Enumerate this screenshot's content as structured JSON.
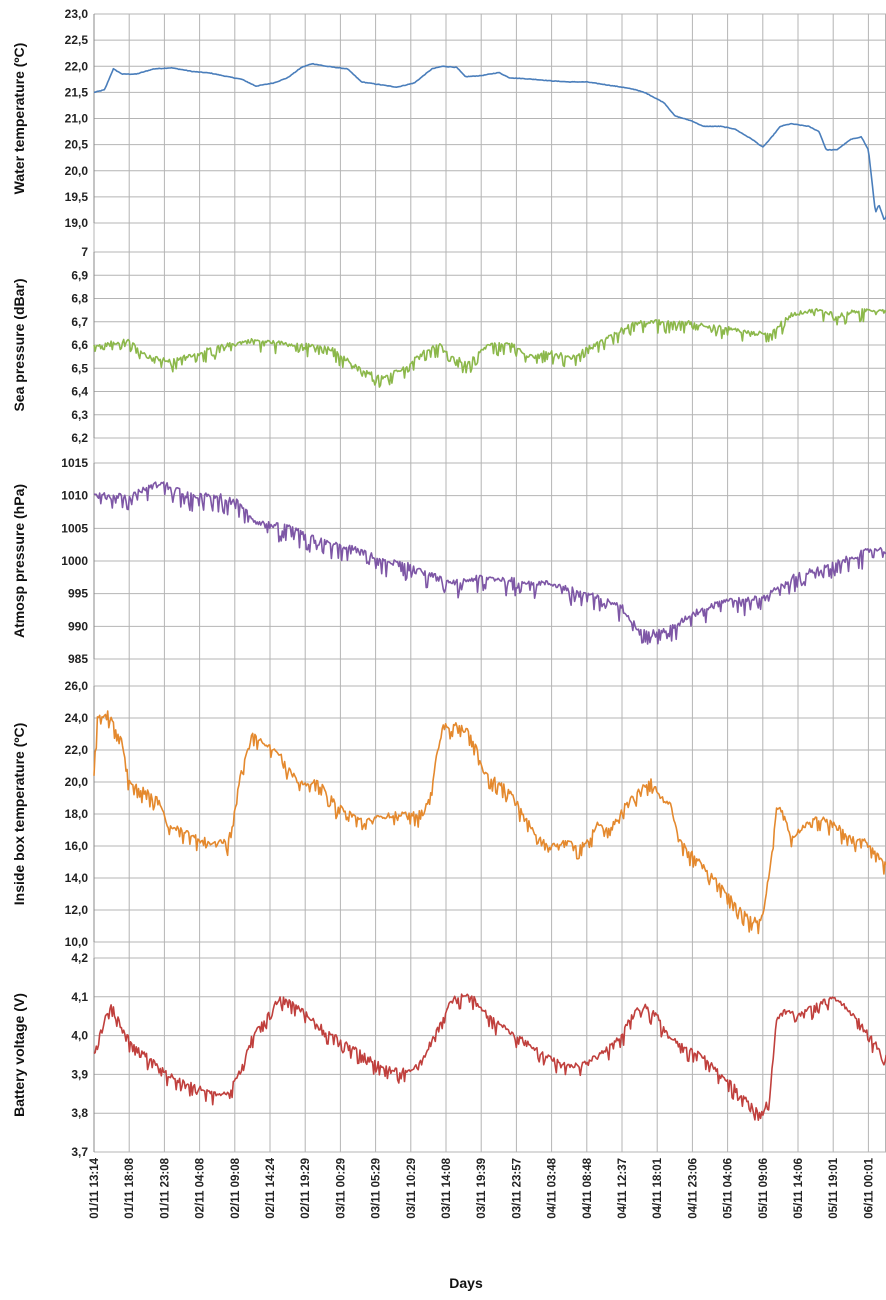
{
  "chart_data": {
    "type": "line",
    "xlabel": "Days",
    "x_ticks": [
      "01/11 13:14",
      "01/11 18:08",
      "01/11 23:08",
      "02/11 04:08",
      "02/11 09:08",
      "02/11 14:24",
      "02/11 19:29",
      "03/11 00:29",
      "03/11 05:29",
      "03/11 10:29",
      "03/11 14:08",
      "03/11 19:39",
      "03/11 23:57",
      "04/11 03:48",
      "04/11 08:48",
      "04/11 12:37",
      "04/11 18:01",
      "04/11 23:06",
      "05/11 04:06",
      "05/11 09:06",
      "05/11 14:06",
      "05/11 19:01",
      "06/11 00:01"
    ],
    "grid": true,
    "panels": [
      {
        "ylabel": "Water temperature (ºC)",
        "color": "#4a7ebb",
        "ylim": [
          19.0,
          23.0
        ],
        "yticks": [
          "19,0",
          "19,5",
          "20,0",
          "20,5",
          "21,0",
          "21,5",
          "22,0",
          "22,5",
          "23,0"
        ],
        "noise": 0.01,
        "series": [
          [
            0,
            21.5
          ],
          [
            0.3,
            21.55
          ],
          [
            0.55,
            21.95
          ],
          [
            0.8,
            21.85
          ],
          [
            1.2,
            21.85
          ],
          [
            1.7,
            21.95
          ],
          [
            2.2,
            21.97
          ],
          [
            2.8,
            21.9
          ],
          [
            3.3,
            21.87
          ],
          [
            3.8,
            21.8
          ],
          [
            4.2,
            21.75
          ],
          [
            4.6,
            21.62
          ],
          [
            5.1,
            21.68
          ],
          [
            5.5,
            21.78
          ],
          [
            5.9,
            21.98
          ],
          [
            6.2,
            22.05
          ],
          [
            6.6,
            22.0
          ],
          [
            7.2,
            21.95
          ],
          [
            7.6,
            21.7
          ],
          [
            8.1,
            21.65
          ],
          [
            8.6,
            21.6
          ],
          [
            9.1,
            21.68
          ],
          [
            9.6,
            21.95
          ],
          [
            9.9,
            22.0
          ],
          [
            10.3,
            21.98
          ],
          [
            10.55,
            21.8
          ],
          [
            11.0,
            21.82
          ],
          [
            11.5,
            21.88
          ],
          [
            11.8,
            21.78
          ],
          [
            12.5,
            21.75
          ],
          [
            13.0,
            21.72
          ],
          [
            13.5,
            21.7
          ],
          [
            14.0,
            21.7
          ],
          [
            14.5,
            21.65
          ],
          [
            15.0,
            21.6
          ],
          [
            15.4,
            21.55
          ],
          [
            15.7,
            21.48
          ],
          [
            16.2,
            21.3
          ],
          [
            16.5,
            21.05
          ],
          [
            17.0,
            20.95
          ],
          [
            17.3,
            20.85
          ],
          [
            17.8,
            20.85
          ],
          [
            18.2,
            20.8
          ],
          [
            18.7,
            20.6
          ],
          [
            19.0,
            20.45
          ],
          [
            19.2,
            20.6
          ],
          [
            19.5,
            20.85
          ],
          [
            19.8,
            20.9
          ],
          [
            20.3,
            20.85
          ],
          [
            20.6,
            20.75
          ],
          [
            20.8,
            20.4
          ],
          [
            21.1,
            20.4
          ],
          [
            21.5,
            20.6
          ],
          [
            21.8,
            20.65
          ],
          [
            22.0,
            20.4
          ],
          [
            22.2,
            19.2
          ],
          [
            22.3,
            19.35
          ],
          [
            22.45,
            19.05
          ],
          [
            22.6,
            19.25
          ],
          [
            22.7,
            19.45
          ]
        ]
      },
      {
        "ylabel": "Sea pressure (dBar)",
        "color": "#8cb84b",
        "ylim": [
          6.2,
          7.0
        ],
        "yticks": [
          "6,2",
          "6,3",
          "6,4",
          "6,5",
          "6,6",
          "6,7",
          "6,8",
          "6,9",
          "7"
        ],
        "noise": 0.05,
        "series": [
          [
            0,
            6.6
          ],
          [
            1,
            6.62
          ],
          [
            1.5,
            6.55
          ],
          [
            2.2,
            6.53
          ],
          [
            3,
            6.57
          ],
          [
            3.8,
            6.6
          ],
          [
            4.5,
            6.62
          ],
          [
            5.2,
            6.61
          ],
          [
            6,
            6.6
          ],
          [
            6.8,
            6.58
          ],
          [
            7.5,
            6.5
          ],
          [
            8.2,
            6.46
          ],
          [
            8.8,
            6.5
          ],
          [
            9.3,
            6.57
          ],
          [
            9.8,
            6.6
          ],
          [
            10.2,
            6.55
          ],
          [
            10.6,
            6.52
          ],
          [
            11.2,
            6.6
          ],
          [
            11.8,
            6.61
          ],
          [
            12.3,
            6.55
          ],
          [
            12.9,
            6.57
          ],
          [
            13.6,
            6.55
          ],
          [
            14.2,
            6.6
          ],
          [
            14.8,
            6.65
          ],
          [
            15.4,
            6.7
          ],
          [
            16,
            6.7
          ],
          [
            16.8,
            6.7
          ],
          [
            17.5,
            6.68
          ],
          [
            18.1,
            6.67
          ],
          [
            18.7,
            6.65
          ],
          [
            19.2,
            6.65
          ],
          [
            19.8,
            6.73
          ],
          [
            20.5,
            6.75
          ],
          [
            21.2,
            6.73
          ],
          [
            21.8,
            6.75
          ],
          [
            22.4,
            6.75
          ],
          [
            22.7,
            6.75
          ]
        ]
      },
      {
        "ylabel": "Atmosp pressure (hPa)",
        "color": "#7e57a6",
        "ylim": [
          985,
          1015
        ],
        "yticks": [
          "985",
          "990",
          "995",
          "1000",
          "1005",
          "1010",
          "1015"
        ],
        "noise": 2.5,
        "series": [
          [
            0,
            1010
          ],
          [
            1,
            1010
          ],
          [
            1.9,
            1012
          ],
          [
            2.8,
            1010
          ],
          [
            3.5,
            1010
          ],
          [
            4.1,
            1009
          ],
          [
            4.6,
            1006
          ],
          [
            5.6,
            1005
          ],
          [
            6.5,
            1003
          ],
          [
            7.3,
            1002
          ],
          [
            8.3,
            1000
          ],
          [
            9.2,
            999
          ],
          [
            10.1,
            996.5
          ],
          [
            11,
            997.5
          ],
          [
            12,
            997
          ],
          [
            13,
            996.5
          ],
          [
            14,
            995
          ],
          [
            15,
            993
          ],
          [
            15.4,
            990
          ],
          [
            16,
            989
          ],
          [
            16.5,
            990
          ],
          [
            17,
            992
          ],
          [
            17.8,
            994
          ],
          [
            18.6,
            994
          ],
          [
            19.2,
            995
          ],
          [
            20,
            998
          ],
          [
            20.8,
            999
          ],
          [
            21.7,
            1001
          ],
          [
            22.2,
            1002
          ],
          [
            22.7,
            1001
          ]
        ]
      },
      {
        "ylabel": "Inside box temperature (ºC)",
        "color": "#e4892e",
        "ylim": [
          10.0,
          26.0
        ],
        "yticks": [
          "10,0",
          "12,0",
          "14,0",
          "16,0",
          "18,0",
          "20,0",
          "22,0",
          "24,0",
          "26,0"
        ],
        "noise": 0.9,
        "series": [
          [
            0,
            21.0
          ],
          [
            0.1,
            24.0
          ],
          [
            0.4,
            24.3
          ],
          [
            0.8,
            22.5
          ],
          [
            1.0,
            20.0
          ],
          [
            1.4,
            19.5
          ],
          [
            1.8,
            19.0
          ],
          [
            2.1,
            17.3
          ],
          [
            2.5,
            17.0
          ],
          [
            3.0,
            16.5
          ],
          [
            3.4,
            16.2
          ],
          [
            3.8,
            16.3
          ],
          [
            3.95,
            17.5
          ],
          [
            4.2,
            21.0
          ],
          [
            4.5,
            23.0
          ],
          [
            4.8,
            22.5
          ],
          [
            5.2,
            22.0
          ],
          [
            5.5,
            21.0
          ],
          [
            5.8,
            20.0
          ],
          [
            6.3,
            20.0
          ],
          [
            6.6,
            19.5
          ],
          [
            6.9,
            18.5
          ],
          [
            7.3,
            18.0
          ],
          [
            7.7,
            17.5
          ],
          [
            8.1,
            17.8
          ],
          [
            8.6,
            18.0
          ],
          [
            9.1,
            18.0
          ],
          [
            9.4,
            18.2
          ],
          [
            9.6,
            20.0
          ],
          [
            9.9,
            23.5
          ],
          [
            10.3,
            23.6
          ],
          [
            10.6,
            23.2
          ],
          [
            10.8,
            22.5
          ],
          [
            11.1,
            20.5
          ],
          [
            11.5,
            20.0
          ],
          [
            11.8,
            19.5
          ],
          [
            12.2,
            18.0
          ],
          [
            12.6,
            16.5
          ],
          [
            13.0,
            16.0
          ],
          [
            13.4,
            16.3
          ],
          [
            13.8,
            16.0
          ],
          [
            14.1,
            16.5
          ],
          [
            14.3,
            17.5
          ],
          [
            14.6,
            17.0
          ],
          [
            14.9,
            17.8
          ],
          [
            15.2,
            19.0
          ],
          [
            15.5,
            19.5
          ],
          [
            15.8,
            20.2
          ],
          [
            16.1,
            19.0
          ],
          [
            16.4,
            18.5
          ],
          [
            16.6,
            16.5
          ],
          [
            17.0,
            15.5
          ],
          [
            17.4,
            14.5
          ],
          [
            17.8,
            13.5
          ],
          [
            18.2,
            12.5
          ],
          [
            18.6,
            11.5
          ],
          [
            18.9,
            11.3
          ],
          [
            19.0,
            11.8
          ],
          [
            19.2,
            14.5
          ],
          [
            19.4,
            18.5
          ],
          [
            19.6,
            18.0
          ],
          [
            19.8,
            16.5
          ],
          [
            20.3,
            17.5
          ],
          [
            20.7,
            17.8
          ],
          [
            21.1,
            17.3
          ],
          [
            21.5,
            16.5
          ],
          [
            21.9,
            16.3
          ],
          [
            22.2,
            15.5
          ],
          [
            22.5,
            15.0
          ],
          [
            22.7,
            15.2
          ]
        ]
      },
      {
        "ylabel": "Battery voltage (V)",
        "color": "#c0403d",
        "ylim": [
          3.7,
          4.2
        ],
        "yticks": [
          "3,7",
          "3,8",
          "3,9",
          "4,0",
          "4,1",
          "4,2"
        ],
        "noise": 0.035,
        "series": [
          [
            0,
            3.95
          ],
          [
            0.2,
            4.02
          ],
          [
            0.5,
            4.08
          ],
          [
            0.8,
            4.02
          ],
          [
            1.1,
            3.98
          ],
          [
            1.6,
            3.94
          ],
          [
            2.1,
            3.9
          ],
          [
            2.6,
            3.88
          ],
          [
            3.1,
            3.86
          ],
          [
            3.5,
            3.85
          ],
          [
            3.8,
            3.85
          ],
          [
            4.1,
            3.9
          ],
          [
            4.5,
            4.0
          ],
          [
            4.9,
            4.05
          ],
          [
            5.3,
            4.1
          ],
          [
            5.7,
            4.08
          ],
          [
            6.1,
            4.05
          ],
          [
            6.5,
            4.02
          ],
          [
            7.0,
            3.99
          ],
          [
            7.5,
            3.96
          ],
          [
            8.0,
            3.93
          ],
          [
            8.5,
            3.91
          ],
          [
            9.0,
            3.91
          ],
          [
            9.4,
            3.95
          ],
          [
            9.8,
            4.03
          ],
          [
            10.2,
            4.1
          ],
          [
            10.7,
            4.11
          ],
          [
            11.0,
            4.07
          ],
          [
            11.5,
            4.03
          ],
          [
            12.0,
            4.0
          ],
          [
            12.5,
            3.97
          ],
          [
            13.0,
            3.94
          ],
          [
            13.5,
            3.92
          ],
          [
            14.0,
            3.93
          ],
          [
            14.5,
            3.96
          ],
          [
            15.0,
            4.0
          ],
          [
            15.3,
            4.06
          ],
          [
            15.6,
            4.08
          ],
          [
            16.0,
            4.05
          ],
          [
            16.3,
            4.0
          ],
          [
            16.8,
            3.97
          ],
          [
            17.3,
            3.95
          ],
          [
            17.8,
            3.9
          ],
          [
            18.3,
            3.86
          ],
          [
            18.7,
            3.82
          ],
          [
            19.0,
            3.8
          ],
          [
            19.2,
            3.85
          ],
          [
            19.4,
            4.05
          ],
          [
            19.6,
            4.07
          ],
          [
            20.0,
            4.05
          ],
          [
            20.5,
            4.08
          ],
          [
            21.0,
            4.1
          ],
          [
            21.4,
            4.07
          ],
          [
            21.8,
            4.03
          ],
          [
            22.2,
            3.98
          ],
          [
            22.7,
            3.93
          ]
        ]
      }
    ]
  }
}
